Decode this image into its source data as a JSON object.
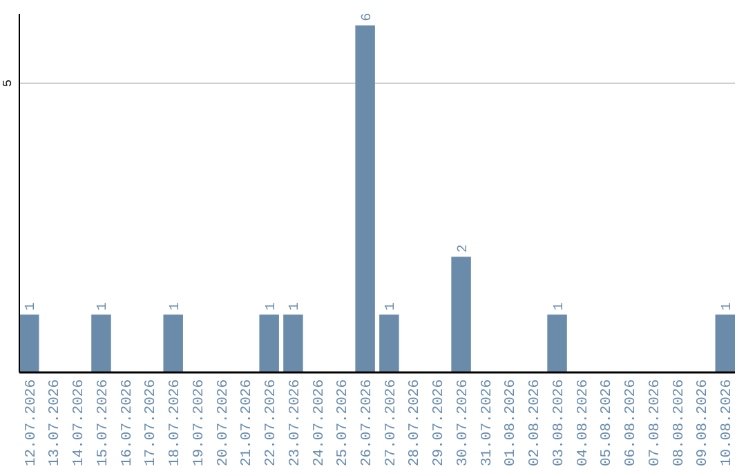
{
  "chart_data": {
    "type": "bar",
    "categories": [
      "12.07.2026",
      "13.07.2026",
      "14.07.2026",
      "15.07.2026",
      "16.07.2026",
      "17.07.2026",
      "18.07.2026",
      "19.07.2026",
      "20.07.2026",
      "21.07.2026",
      "22.07.2026",
      "23.07.2026",
      "24.07.2026",
      "25.07.2026",
      "26.07.2026",
      "27.07.2026",
      "28.07.2026",
      "29.07.2026",
      "30.07.2026",
      "31.07.2026",
      "01.08.2026",
      "02.08.2026",
      "03.08.2026",
      "04.08.2026",
      "05.08.2026",
      "06.08.2026",
      "07.08.2026",
      "08.08.2026",
      "09.08.2026",
      "10.08.2026"
    ],
    "values": [
      1,
      0,
      0,
      1,
      0,
      0,
      1,
      0,
      0,
      0,
      1,
      1,
      0,
      0,
      6,
      1,
      0,
      0,
      2,
      0,
      0,
      0,
      1,
      0,
      0,
      0,
      0,
      0,
      0,
      1
    ],
    "value_labels": [
      "1",
      null,
      null,
      "1",
      null,
      null,
      "1",
      null,
      null,
      null,
      "1",
      "1",
      null,
      null,
      "6",
      "1",
      null,
      null,
      "2",
      null,
      null,
      null,
      "1",
      null,
      null,
      null,
      null,
      null,
      null,
      "1"
    ],
    "color": "#6a8caa",
    "ylim": [
      0,
      6.2
    ],
    "yticks": [
      5
    ],
    "grid": "y"
  }
}
